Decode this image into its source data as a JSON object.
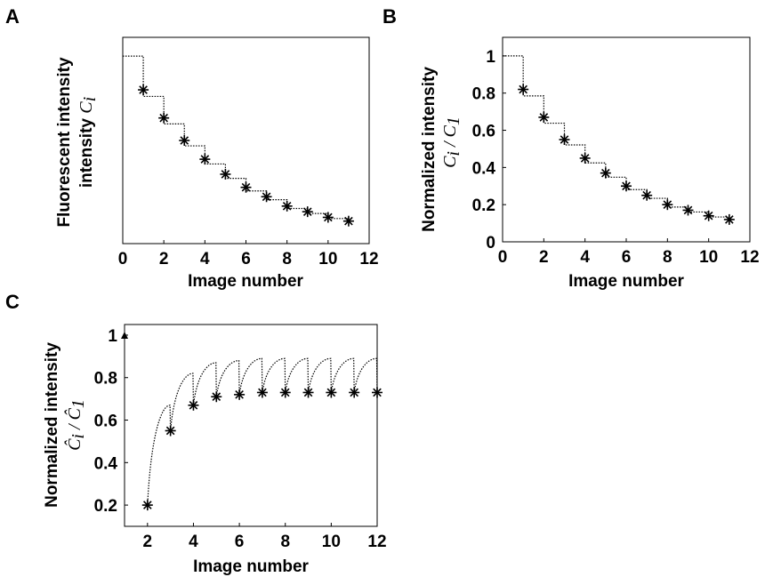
{
  "chart_data": [
    {
      "panel": "A",
      "type": "scatter",
      "xlabel": "Image number",
      "ylabel": "Fluorescent intensity",
      "ylabel_math": "C",
      "ylabel_sub": "i",
      "xlim": [
        0,
        12
      ],
      "ylim": [
        0,
        1.1
      ],
      "xticks": [
        0,
        2,
        4,
        6,
        8,
        10,
        12
      ],
      "yticks": [],
      "x": [
        1,
        2,
        3,
        4,
        5,
        6,
        7,
        8,
        9,
        10,
        11
      ],
      "y": [
        0.82,
        0.67,
        0.55,
        0.45,
        0.37,
        0.3,
        0.25,
        0.2,
        0.17,
        0.14,
        0.12
      ],
      "curve": "step",
      "curve_start": 1.0
    },
    {
      "panel": "B",
      "type": "scatter",
      "xlabel": "Image number",
      "ylabel": "Normalized intensity",
      "ylabel_math": "C",
      "ylabel_sub": "i",
      "ylabel_math2": "C",
      "ylabel_sub2": "1",
      "xlim": [
        0,
        12
      ],
      "ylim": [
        0,
        1.1
      ],
      "xticks": [
        0,
        2,
        4,
        6,
        8,
        10,
        12
      ],
      "yticks": [
        0,
        0.2,
        0.4,
        0.6,
        0.8,
        1
      ],
      "x": [
        1,
        2,
        3,
        4,
        5,
        6,
        7,
        8,
        9,
        10,
        11
      ],
      "y": [
        0.82,
        0.67,
        0.55,
        0.45,
        0.37,
        0.3,
        0.25,
        0.2,
        0.17,
        0.14,
        0.12
      ],
      "curve": "step",
      "curve_start": 1.0
    },
    {
      "panel": "C",
      "type": "scatter",
      "xlabel": "Image number",
      "ylabel": "Normalized intensity",
      "ylabel_math": "Ĉ",
      "ylabel_sub": "i",
      "ylabel_math2": "Ĉ",
      "ylabel_sub2": "1",
      "xlim": [
        1,
        12
      ],
      "ylim": [
        0.1,
        1.05
      ],
      "xticks": [
        2,
        4,
        6,
        8,
        10,
        12
      ],
      "yticks": [
        0.2,
        0.4,
        0.6,
        0.8,
        1
      ],
      "x": [
        2,
        3,
        4,
        5,
        6,
        7,
        8,
        9,
        10,
        11,
        12
      ],
      "y": [
        0.2,
        0.55,
        0.67,
        0.71,
        0.72,
        0.73,
        0.73,
        0.73,
        0.73,
        0.73,
        0.73
      ],
      "extra_point": {
        "x": 1,
        "y": 1.0,
        "marker": "triangle"
      },
      "curve": "sawtooth",
      "curve_peaks": [
        0.67,
        0.82,
        0.87,
        0.88,
        0.89,
        0.89,
        0.89,
        0.89,
        0.89,
        0.89
      ]
    }
  ]
}
